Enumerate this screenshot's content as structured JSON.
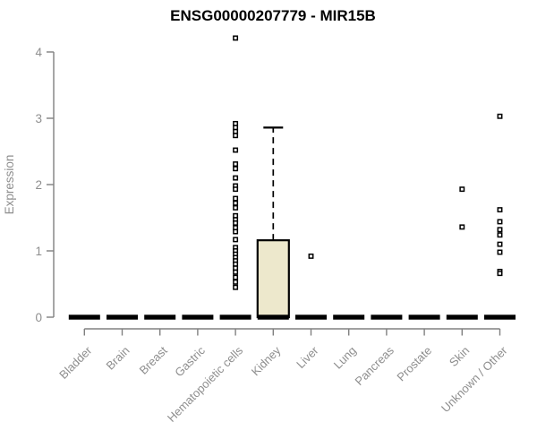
{
  "title": "ENSG00000207779 - MIR15B",
  "colors": {
    "background": "#ffffff",
    "box_fill": "#ede8cc",
    "box_border": "#000000",
    "median_color": "#000000",
    "outlier_color": "#000000",
    "axis_color": "#808080",
    "tick_label_color": "#8e8e8e",
    "title_color": "#000000"
  },
  "chart_data": {
    "type": "boxplot",
    "title": "ENSG00000207779 - MIR15B",
    "xlabel": "",
    "ylabel": "Expression",
    "ylim": [
      0,
      4.3
    ],
    "yticks": [
      0,
      1,
      2,
      3,
      4
    ],
    "grid": false,
    "legend": false,
    "categories": [
      "Bladder",
      "Brain",
      "Breast",
      "Gastric",
      "Hematopoietic cells",
      "Kidney",
      "Liver",
      "Lung",
      "Pancreas",
      "Prostate",
      "Skin",
      "Unknown / Other"
    ],
    "series": [
      {
        "category": "Bladder",
        "median": 0,
        "q1": 0,
        "q3": 0,
        "whisker_low": 0,
        "whisker_high": 0,
        "outliers": []
      },
      {
        "category": "Brain",
        "median": 0,
        "q1": 0,
        "q3": 0,
        "whisker_low": 0,
        "whisker_high": 0,
        "outliers": []
      },
      {
        "category": "Breast",
        "median": 0,
        "q1": 0,
        "q3": 0,
        "whisker_low": 0,
        "whisker_high": 0,
        "outliers": []
      },
      {
        "category": "Gastric",
        "median": 0,
        "q1": 0,
        "q3": 0,
        "whisker_low": 0,
        "whisker_high": 0,
        "outliers": []
      },
      {
        "category": "Hematopoietic cells",
        "median": 0,
        "q1": 0,
        "q3": 0,
        "whisker_low": 0,
        "whisker_high": 0,
        "outliers": [
          4.21,
          2.92,
          2.86,
          2.8,
          2.74,
          2.52,
          2.31,
          2.24,
          2.1,
          1.98,
          1.93,
          1.79,
          1.72,
          1.65,
          1.53,
          1.47,
          1.42,
          1.35,
          1.29,
          1.17,
          1.05,
          1.0,
          0.95,
          0.9,
          0.85,
          0.8,
          0.74,
          0.68,
          0.6,
          0.53,
          0.45
        ]
      },
      {
        "category": "Kidney",
        "median": 0,
        "q1": 0,
        "q3": 1.16,
        "whisker_low": 0,
        "whisker_high": 2.86,
        "outliers": []
      },
      {
        "category": "Liver",
        "median": 0,
        "q1": 0,
        "q3": 0,
        "whisker_low": 0,
        "whisker_high": 0,
        "outliers": [
          0.92
        ]
      },
      {
        "category": "Lung",
        "median": 0,
        "q1": 0,
        "q3": 0,
        "whisker_low": 0,
        "whisker_high": 0,
        "outliers": []
      },
      {
        "category": "Pancreas",
        "median": 0,
        "q1": 0,
        "q3": 0,
        "whisker_low": 0,
        "whisker_high": 0,
        "outliers": []
      },
      {
        "category": "Prostate",
        "median": 0,
        "q1": 0,
        "q3": 0,
        "whisker_low": 0,
        "whisker_high": 0,
        "outliers": []
      },
      {
        "category": "Skin",
        "median": 0,
        "q1": 0,
        "q3": 0,
        "whisker_low": 0,
        "whisker_high": 0,
        "outliers": [
          1.93,
          1.36
        ]
      },
      {
        "category": "Unknown / Other",
        "median": 0,
        "q1": 0,
        "q3": 0,
        "whisker_low": 0,
        "whisker_high": 0,
        "outliers": [
          3.03,
          1.62,
          1.44,
          1.32,
          1.24,
          1.1,
          0.98,
          0.69,
          0.66
        ]
      }
    ]
  }
}
